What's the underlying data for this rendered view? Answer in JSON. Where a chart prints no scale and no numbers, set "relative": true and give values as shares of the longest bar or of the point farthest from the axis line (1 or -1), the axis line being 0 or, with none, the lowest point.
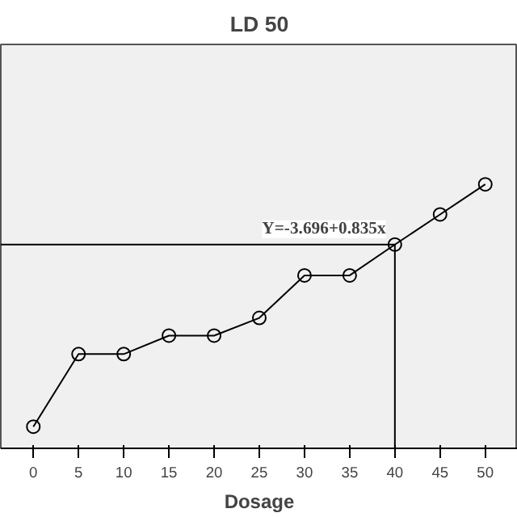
{
  "chart_data": {
    "type": "line",
    "title": "LD 50",
    "xlabel": "Dosage",
    "relative": true,
    "x": [
      0,
      5,
      10,
      15,
      20,
      25,
      30,
      35,
      40,
      45,
      50
    ],
    "series": [
      {
        "color": "#000000",
        "values": [
          0.082,
          0.357,
          0.357,
          0.427,
          0.427,
          0.494,
          0.655,
          0.655,
          0.772,
          0.886,
          1
        ]
      }
    ],
    "xlim": [
      -3.6,
      53.6
    ],
    "xticks": [
      0,
      5,
      10,
      15,
      20,
      25,
      30,
      35,
      40,
      45,
      50
    ],
    "annotations": [
      "Y=-3.696+0.835x"
    ],
    "ref_lines": [
      {
        "axis": "y",
        "value": 0.772,
        "color": "#000000"
      },
      {
        "axis": "x",
        "value": 40,
        "color": "#000000"
      }
    ],
    "marker": "circle",
    "line_style": "solid",
    "grid": false
  }
}
